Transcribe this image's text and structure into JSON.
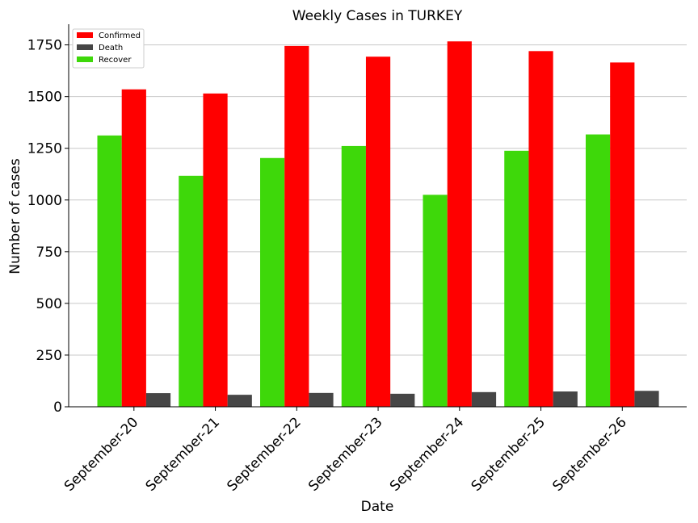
{
  "chart_data": {
    "type": "bar",
    "title": "Weekly Cases in TURKEY",
    "xlabel": "Date",
    "ylabel": "Number of cases",
    "categories": [
      "September-20",
      "September-21",
      "September-22",
      "September-23",
      "September-24",
      "September-25",
      "September-26"
    ],
    "series": [
      {
        "name": "Recover",
        "color": "#3ed80a",
        "values": [
          1312,
          1117,
          1203,
          1261,
          1025,
          1238,
          1317
        ]
      },
      {
        "name": "Confirmed",
        "color": "#ff0000",
        "values": [
          1535,
          1515,
          1745,
          1693,
          1767,
          1720,
          1665
        ]
      },
      {
        "name": "Death",
        "color": "#464646",
        "values": [
          66,
          58,
          67,
          63,
          71,
          74,
          77
        ]
      }
    ],
    "legend_order": [
      "Confirmed",
      "Death",
      "Recover"
    ],
    "legend_position": "top-left",
    "ylim": [
      0,
      1850
    ],
    "yticks": [
      0,
      250,
      500,
      750,
      1000,
      1250,
      1500,
      1750
    ],
    "grid": "horizontal"
  }
}
